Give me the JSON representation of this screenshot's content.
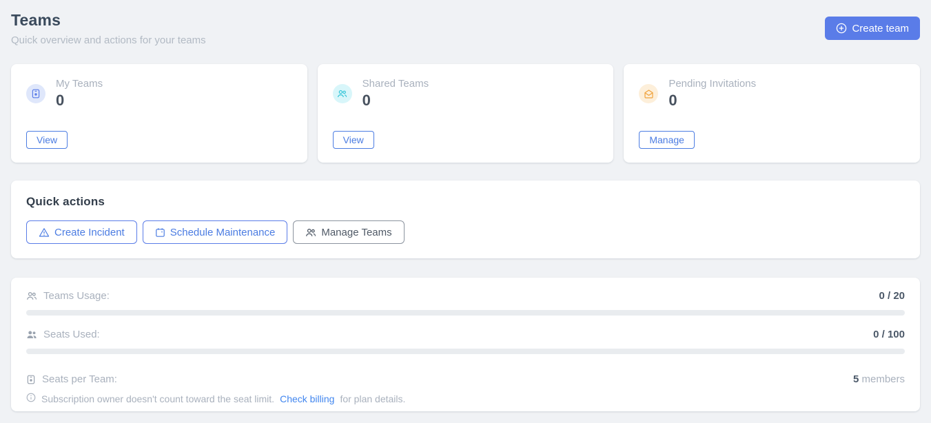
{
  "page": {
    "title": "Teams",
    "subtitle": "Quick overview and actions for your teams"
  },
  "header": {
    "create_team_label": "Create team",
    "create_team_icon": "plus-circle-icon"
  },
  "stat_cards": [
    {
      "label": "My Teams",
      "value": "0",
      "action_label": "View",
      "icon": "id-badge-icon",
      "accent": "#5a7ce8",
      "accent_bg": "#dfe7fb"
    },
    {
      "label": "Shared Teams",
      "value": "0",
      "action_label": "View",
      "icon": "users-icon",
      "accent": "#33c5d8",
      "accent_bg": "#d8f6fa"
    },
    {
      "label": "Pending Invitations",
      "value": "0",
      "action_label": "Manage",
      "icon": "envelope-open-icon",
      "accent": "#f0a23c",
      "accent_bg": "#fdefda"
    }
  ],
  "quick_actions": {
    "title": "Quick actions",
    "buttons": [
      {
        "label": "Create Incident",
        "icon": "warning-triangle-icon",
        "style": "blue"
      },
      {
        "label": "Schedule Maintenance",
        "icon": "calendar-icon",
        "style": "blue"
      },
      {
        "label": "Manage Teams",
        "icon": "users-icon",
        "style": "gray"
      }
    ]
  },
  "usage": {
    "teams_usage": {
      "label": "Teams Usage:",
      "value": "0 / 20",
      "progress_percent": 0,
      "icon": "users-outline-icon"
    },
    "seats_used": {
      "label": "Seats Used:",
      "value": "0 / 100",
      "progress_percent": 0,
      "icon": "users-filled-icon"
    },
    "seats_per_team": {
      "label": "Seats per Team:",
      "value": "5",
      "unit": " members",
      "icon": "id-badge-icon"
    },
    "note": {
      "icon": "info-circle-icon",
      "text_before": "Subscription owner doesn't count toward the seat limit.",
      "link_label": "Check billing",
      "text_after": "for plan details."
    }
  },
  "colors": {
    "page_background": "#f0f2f5",
    "card_background": "#ffffff",
    "primary_blue": "#5a7ce8",
    "link_blue": "#4186ef",
    "cyan_accent": "#33c5d8",
    "orange_accent": "#f0a23c",
    "progress_track": "#e9ecef",
    "muted_text": "#a9b1bd",
    "dark_text": "#3a4a5c"
  }
}
